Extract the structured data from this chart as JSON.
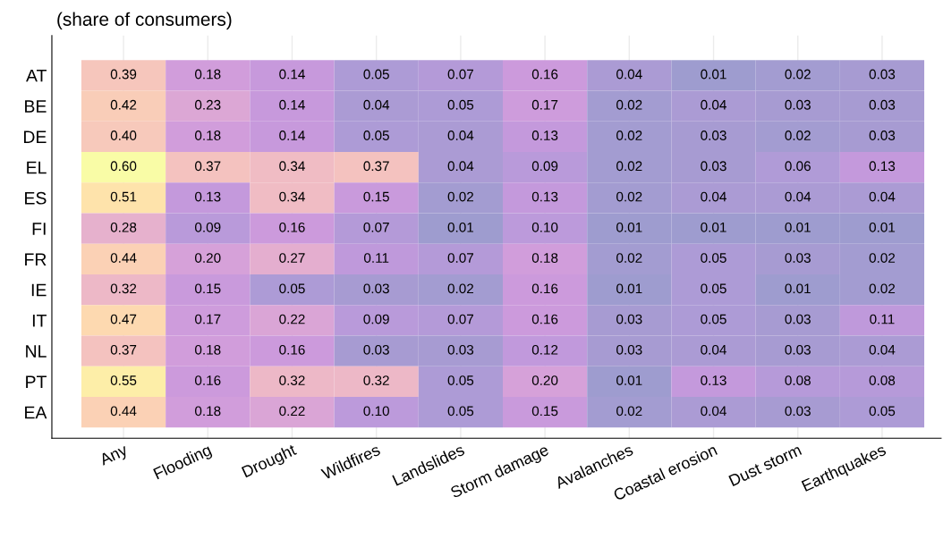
{
  "chart_data": {
    "type": "heatmap",
    "ylabel": "(share of consumers)",
    "categories": [
      "Any",
      "Flooding",
      "Drought",
      "Wildfires",
      "Landslides",
      "Storm damage",
      "Avalanches",
      "Coastal erosion",
      "Dust storm",
      "Earthquakes"
    ],
    "y_categories": [
      "AT",
      "BE",
      "DE",
      "EL",
      "ES",
      "FI",
      "FR",
      "IE",
      "IT",
      "NL",
      "PT",
      "EA"
    ],
    "cells": [
      [
        0.39,
        0.18,
        0.14,
        0.05,
        0.07,
        0.16,
        0.04,
        0.01,
        0.02,
        0.03
      ],
      [
        0.42,
        0.23,
        0.14,
        0.04,
        0.05,
        0.17,
        0.02,
        0.04,
        0.03,
        0.03
      ],
      [
        0.4,
        0.18,
        0.14,
        0.05,
        0.04,
        0.13,
        0.02,
        0.03,
        0.02,
        0.03
      ],
      [
        0.6,
        0.37,
        0.34,
        0.37,
        0.04,
        0.09,
        0.02,
        0.03,
        0.06,
        0.13
      ],
      [
        0.51,
        0.13,
        0.34,
        0.15,
        0.02,
        0.13,
        0.02,
        0.04,
        0.04,
        0.04
      ],
      [
        0.28,
        0.09,
        0.16,
        0.07,
        0.01,
        0.1,
        0.01,
        0.01,
        0.01,
        0.01
      ],
      [
        0.44,
        0.2,
        0.27,
        0.11,
        0.07,
        0.18,
        0.02,
        0.05,
        0.03,
        0.02
      ],
      [
        0.32,
        0.15,
        0.05,
        0.03,
        0.02,
        0.16,
        0.01,
        0.05,
        0.01,
        0.02
      ],
      [
        0.47,
        0.17,
        0.22,
        0.09,
        0.07,
        0.16,
        0.03,
        0.05,
        0.03,
        0.11
      ],
      [
        0.37,
        0.18,
        0.16,
        0.03,
        0.03,
        0.12,
        0.03,
        0.04,
        0.03,
        0.04
      ],
      [
        0.55,
        0.16,
        0.32,
        0.32,
        0.05,
        0.2,
        0.01,
        0.13,
        0.08,
        0.08
      ],
      [
        0.44,
        0.18,
        0.22,
        0.1,
        0.05,
        0.15,
        0.02,
        0.04,
        0.03,
        0.05
      ]
    ],
    "cell_labels": [
      [
        "0.39",
        "0.18",
        "0.14",
        "0.05",
        "0.07",
        "0.16",
        "0.04",
        "0.01",
        "0.02",
        "0.03"
      ],
      [
        "0.42",
        "0.23",
        "0.14",
        "0.04",
        "0.05",
        "0.17",
        "0.02",
        "0.04",
        "0.03",
        "0.03"
      ],
      [
        "0.40",
        "0.18",
        "0.14",
        "0.05",
        "0.04",
        "0.13",
        "0.02",
        "0.03",
        "0.02",
        "0.03"
      ],
      [
        "0.60",
        "0.37",
        "0.34",
        "0.37",
        "0.04",
        "0.09",
        "0.02",
        "0.03",
        "0.06",
        "0.13"
      ],
      [
        "0.51",
        "0.13",
        "0.34",
        "0.15",
        "0.02",
        "0.13",
        "0.02",
        "0.04",
        "0.04",
        "0.04"
      ],
      [
        "0.28",
        "0.09",
        "0.16",
        "0.07",
        "0.01",
        "0.10",
        "0.01",
        "0.01",
        "0.01",
        "0.01"
      ],
      [
        "0.44",
        "0.20",
        "0.27",
        "0.11",
        "0.07",
        "0.18",
        "0.02",
        "0.05",
        "0.03",
        "0.02"
      ],
      [
        "0.32",
        "0.15",
        "0.05",
        "0.03",
        "0.02",
        "0.16",
        "0.01",
        "0.05",
        "0.01",
        "0.02"
      ],
      [
        "0.47",
        "0.17",
        "0.22",
        "0.09",
        "0.07",
        "0.16",
        "0.03",
        "0.05",
        "0.03",
        "0.11"
      ],
      [
        "0.37",
        "0.18",
        "0.16",
        "0.03",
        "0.03",
        "0.12",
        "0.03",
        "0.04",
        "0.03",
        "0.04"
      ],
      [
        "0.55",
        "0.16",
        "0.32",
        "0.32",
        "0.05",
        "0.20",
        "0.01",
        "0.13",
        "0.08",
        "0.08"
      ],
      [
        "0.44",
        "0.18",
        "0.22",
        "0.10",
        "0.05",
        "0.15",
        "0.02",
        "0.04",
        "0.03",
        "0.05"
      ]
    ],
    "grid": "x"
  }
}
